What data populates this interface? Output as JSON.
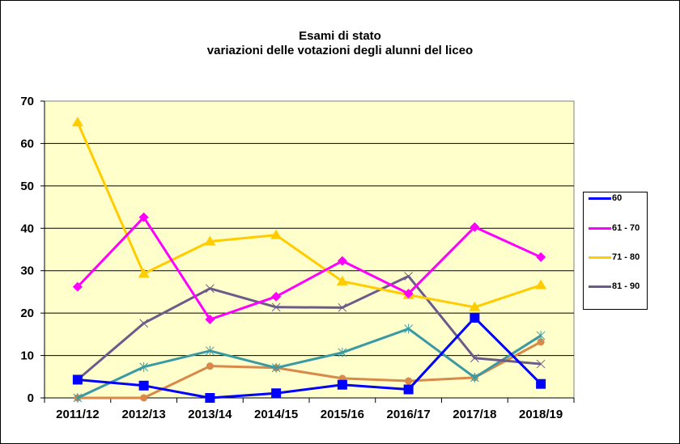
{
  "chart_data": {
    "type": "line",
    "title": "Esami di stato",
    "subtitle": "variazioni delle votazioni degli alunni del liceo",
    "xlabel": "",
    "ylabel": "",
    "ylim": [
      0,
      70
    ],
    "yticks": [
      0,
      10,
      20,
      30,
      40,
      50,
      60,
      70
    ],
    "grid": true,
    "legend_position": "right",
    "categories": [
      "2011/12",
      "2012/13",
      "2013/14",
      "2014/15",
      "2015/16",
      "2016/17",
      "2017/18",
      "2018/19"
    ],
    "series": [
      {
        "name": "60",
        "color": "#0000FF",
        "marker": "square",
        "in_legend": true,
        "values": [
          4.3,
          2.9,
          0.0,
          1.1,
          3.1,
          2.0,
          18.9,
          3.3
        ]
      },
      {
        "name": "61 - 70",
        "color": "#FF00FF",
        "marker": "diamond",
        "in_legend": true,
        "values": [
          26.2,
          42.6,
          18.5,
          23.9,
          32.3,
          24.6,
          40.3,
          33.2
        ]
      },
      {
        "name": "71 - 80",
        "color": "#FFCC00",
        "marker": "triangle",
        "in_legend": true,
        "values": [
          65.0,
          29.3,
          36.9,
          38.4,
          27.5,
          24.3,
          21.4,
          26.6
        ]
      },
      {
        "name": "81 - 90",
        "color": "#6B5B8A",
        "marker": "x",
        "in_legend": true,
        "values": [
          4.3,
          17.6,
          25.8,
          21.4,
          21.3,
          28.7,
          9.4,
          8.0
        ]
      },
      {
        "name": "",
        "color": "#3A9AA4",
        "marker": "star",
        "in_legend": false,
        "values": [
          0.0,
          7.3,
          11.1,
          7.1,
          10.7,
          16.3,
          4.8,
          14.7
        ]
      },
      {
        "name": "",
        "color": "#D9894A",
        "marker": "circle",
        "in_legend": false,
        "values": [
          0.0,
          0.0,
          7.5,
          7.1,
          4.6,
          4.0,
          4.8,
          13.2
        ]
      }
    ]
  },
  "header": {
    "title": "Esami di stato",
    "subtitle": "variazioni delle votazioni degli alunni del liceo"
  },
  "legend": {
    "items": [
      {
        "label": "60",
        "color": "#0000FF"
      },
      {
        "label": "61 - 70",
        "color": "#FF00FF"
      },
      {
        "label": "71 - 80",
        "color": "#FFCC00"
      },
      {
        "label": "81 - 90",
        "color": "#6B5B8A"
      }
    ]
  },
  "style": {
    "plot_background": "#FFFFCC",
    "gridline_color": "#000000"
  }
}
